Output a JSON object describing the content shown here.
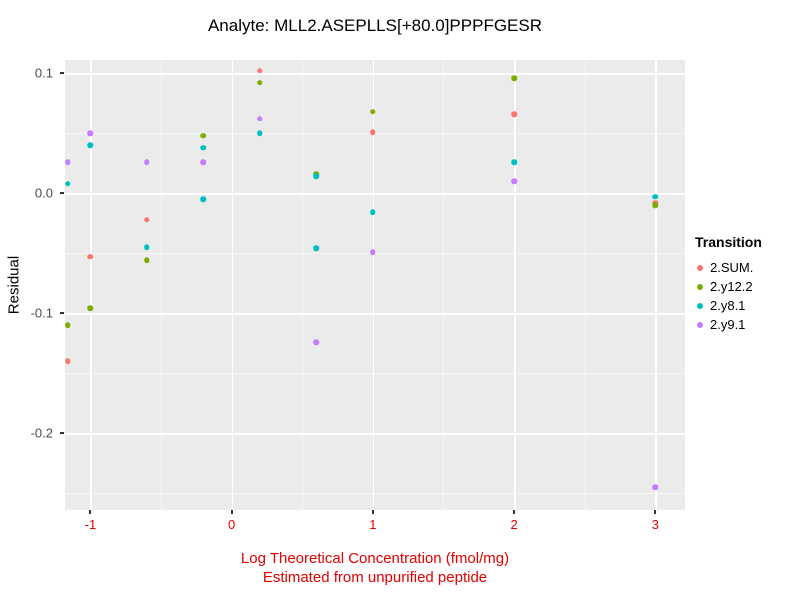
{
  "legend": {
    "title": "Transition"
  },
  "chart_data": {
    "type": "scatter",
    "title": "Analyte: MLL2.ASEPLLS[+80.0]PPPFGESR",
    "ylabel": "Residual",
    "xlabel": "Log Theoretical Concentration (fmol/mg)",
    "xlabel_line2": "Estimated from unpurified peptide",
    "xlim": [
      -1.18,
      3.21
    ],
    "ylim": [
      -0.264,
      0.111
    ],
    "xticks": [
      {
        "value": -1,
        "label": "-1"
      },
      {
        "value": 0,
        "label": "0"
      },
      {
        "value": 1,
        "label": "1"
      },
      {
        "value": 2,
        "label": "2"
      },
      {
        "value": 3,
        "label": "3"
      }
    ],
    "yticks": [
      {
        "value": 0.1,
        "label": "0.1"
      },
      {
        "value": 0.0,
        "label": "0.0"
      },
      {
        "value": -0.1,
        "label": "-0.1"
      },
      {
        "value": -0.2,
        "label": "-0.2"
      }
    ],
    "minor_xticks": [
      -0.5,
      0.5,
      1.5,
      2.5
    ],
    "minor_yticks": [
      0.05,
      -0.05,
      -0.15,
      -0.25
    ],
    "colors": {
      "panel_bg": "#EBEBEB",
      "grid": "#FFFFFF",
      "axis_text_x": "#E60000",
      "axis_text_y": "#4D4D4D",
      "tick_mark": "#333333"
    },
    "legend_position": "right",
    "series": [
      {
        "name": "2.SUM.",
        "color": "#F8766D",
        "points": [
          [
            -1.16,
            -0.14
          ],
          [
            -1,
            -0.053
          ],
          [
            -0.6,
            -0.022
          ],
          [
            0.2,
            0.102
          ],
          [
            1,
            0.051
          ],
          [
            2,
            0.066
          ],
          [
            3,
            -0.008
          ]
        ]
      },
      {
        "name": "2.y12.2",
        "color": "#7CAE00",
        "points": [
          [
            -1.16,
            -0.11
          ],
          [
            -1,
            -0.096
          ],
          [
            -0.6,
            -0.056
          ],
          [
            -0.2,
            0.048
          ],
          [
            0.2,
            0.092
          ],
          [
            0.6,
            0.016
          ],
          [
            1,
            0.068
          ],
          [
            2,
            0.096
          ],
          [
            3,
            -0.01
          ]
        ]
      },
      {
        "name": "2.y8.1",
        "color": "#00BFC4",
        "points": [
          [
            -1.16,
            0.008
          ],
          [
            -1,
            0.04
          ],
          [
            -0.6,
            -0.045
          ],
          [
            -0.2,
            0.038
          ],
          [
            -0.2,
            -0.005
          ],
          [
            0.2,
            0.05
          ],
          [
            0.6,
            0.014
          ],
          [
            0.6,
            -0.046
          ],
          [
            1,
            -0.016
          ],
          [
            2,
            0.026
          ],
          [
            3,
            -0.003
          ]
        ]
      },
      {
        "name": "2.y9.1",
        "color": "#C77CFF",
        "points": [
          [
            -1.16,
            0.026
          ],
          [
            -1,
            0.05
          ],
          [
            -0.6,
            0.026
          ],
          [
            -0.2,
            0.026
          ],
          [
            0.2,
            0.062
          ],
          [
            0.6,
            -0.124
          ],
          [
            1,
            -0.049
          ],
          [
            2,
            0.01
          ],
          [
            3,
            -0.245
          ]
        ]
      }
    ]
  }
}
